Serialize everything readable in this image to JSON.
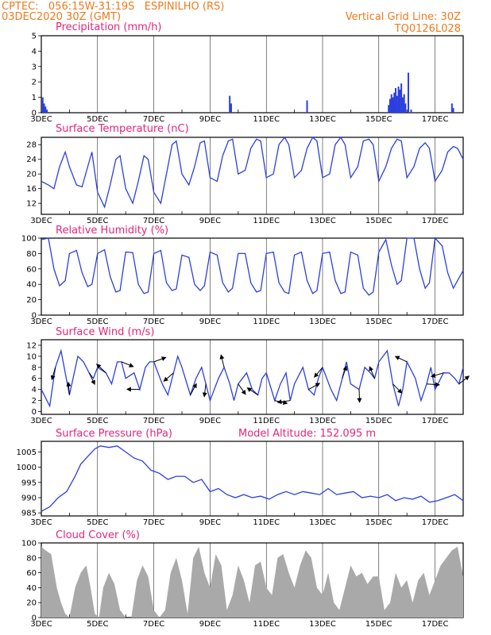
{
  "header": {
    "line1": "CPTEC:   056:15W-31:19S   ESPINILHO (RS)",
    "line2": "03DEC2020 30Z (GMT)",
    "right1": "Vertical Grid Line: 30Z",
    "right2": "TQ0126L028"
  },
  "x_ticks": [
    "3DEC",
    "5DEC",
    "7DEC",
    "9DEC",
    "11DEC",
    "13DEC",
    "15DEC",
    "17DEC"
  ],
  "colors": {
    "header": "#ee7a1c",
    "title": "#e4257a",
    "line": "#2b3fe0",
    "bar": "#2b3fe0",
    "cloud": "#a9a9a9"
  },
  "chart_data": [
    {
      "type": "bar",
      "title": "Precipitation (mm/h)",
      "ylim": [
        0,
        5
      ],
      "yticks": [
        0,
        1,
        2,
        3,
        4,
        5
      ],
      "x": [
        0.05,
        0.1,
        0.15,
        0.2,
        6.7,
        6.75,
        9.45,
        12.35,
        12.4,
        12.45,
        12.5,
        12.55,
        12.6,
        12.65,
        12.7,
        12.75,
        12.8,
        12.85,
        12.9,
        12.95,
        13.05,
        13.15,
        14.6,
        14.65
      ],
      "values": [
        1.0,
        0.6,
        0.4,
        0.2,
        1.1,
        0.6,
        0.8,
        0.5,
        0.9,
        1.2,
        1.0,
        1.3,
        1.6,
        1.1,
        1.7,
        1.5,
        1.9,
        1.0,
        1.2,
        0.6,
        2.6,
        0.2,
        0.6,
        0.3
      ]
    },
    {
      "type": "line",
      "title": "Surface Temperature (nC)",
      "ylim": [
        9,
        30
      ],
      "yticks": [
        12,
        16,
        20,
        24,
        28
      ],
      "x": [
        0,
        0.25,
        0.45,
        0.65,
        0.85,
        1.0,
        1.25,
        1.45,
        1.65,
        1.8,
        2.0,
        2.25,
        2.45,
        2.65,
        2.8,
        3.0,
        3.25,
        3.45,
        3.65,
        3.8,
        4.0,
        4.25,
        4.45,
        4.65,
        4.8,
        5.0,
        5.25,
        5.45,
        5.65,
        5.8,
        6.0,
        6.25,
        6.45,
        6.65,
        6.8,
        7.0,
        7.25,
        7.45,
        7.65,
        7.8,
        8.0,
        8.25,
        8.45,
        8.65,
        8.8,
        9.0,
        9.25,
        9.45,
        9.65,
        9.8,
        10.0,
        10.25,
        10.45,
        10.65,
        10.8,
        11.0,
        11.25,
        11.45,
        11.65,
        11.8,
        12.0,
        12.25,
        12.45,
        12.65,
        12.8,
        13.0,
        13.25,
        13.45,
        13.65,
        13.8,
        14.0,
        14.25,
        14.45,
        14.65,
        14.8,
        15.0
      ],
      "y": [
        18,
        17,
        16,
        22,
        26,
        22,
        17,
        16.5,
        22,
        26,
        15,
        11,
        17,
        24,
        25,
        16,
        12,
        18,
        25,
        24,
        15,
        12,
        20,
        28,
        29,
        20,
        17,
        22,
        28.5,
        29,
        19,
        18,
        25,
        29,
        29.5,
        20,
        21,
        27,
        29.5,
        29,
        19,
        20,
        28,
        30,
        28,
        19,
        21,
        27,
        30,
        29,
        19,
        20,
        28,
        30,
        28,
        19,
        22,
        29,
        29.5,
        28,
        18,
        22,
        27,
        29.5,
        29,
        19,
        22,
        27,
        28.5,
        27,
        18,
        21,
        26,
        27.5,
        27,
        24
      ]
    },
    {
      "type": "line",
      "title": "Relative Humidity (%)",
      "ylim": [
        0,
        100
      ],
      "yticks": [
        0,
        20,
        40,
        60,
        80,
        100
      ],
      "x": [
        0,
        0.25,
        0.45,
        0.65,
        0.85,
        1.0,
        1.25,
        1.45,
        1.65,
        1.8,
        2.0,
        2.25,
        2.45,
        2.65,
        2.8,
        3.0,
        3.25,
        3.45,
        3.65,
        3.8,
        4.0,
        4.25,
        4.45,
        4.65,
        4.8,
        5.0,
        5.25,
        5.45,
        5.65,
        5.8,
        6.0,
        6.25,
        6.45,
        6.65,
        6.8,
        7.0,
        7.25,
        7.45,
        7.65,
        7.8,
        8.0,
        8.25,
        8.45,
        8.65,
        8.8,
        9.0,
        9.25,
        9.45,
        9.65,
        9.8,
        10.0,
        10.25,
        10.45,
        10.65,
        10.8,
        11.0,
        11.25,
        11.45,
        11.65,
        11.8,
        12.0,
        12.25,
        12.45,
        12.65,
        12.8,
        13.0,
        13.25,
        13.45,
        13.65,
        13.8,
        14.0,
        14.25,
        14.45,
        14.65,
        14.8,
        15.0
      ],
      "y": [
        98,
        100,
        60,
        38,
        45,
        80,
        84,
        55,
        37,
        40,
        80,
        85,
        50,
        30,
        32,
        82,
        81,
        40,
        28,
        30,
        80,
        84,
        42,
        32,
        34,
        78,
        75,
        40,
        32,
        38,
        82,
        78,
        42,
        30,
        35,
        80,
        80,
        42,
        30,
        32,
        80,
        82,
        42,
        30,
        28,
        78,
        82,
        45,
        28,
        32,
        80,
        82,
        45,
        28,
        30,
        82,
        78,
        35,
        26,
        30,
        82,
        98,
        65,
        40,
        45,
        100,
        100,
        60,
        35,
        42,
        100,
        90,
        55,
        35,
        45,
        58
      ]
    },
    {
      "type": "line",
      "title": "Surface Wind (m/s)",
      "ylim": [
        -0.5,
        13
      ],
      "yticks": [
        0,
        2,
        4,
        6,
        8,
        10,
        12
      ],
      "x": [
        0,
        0.3,
        0.5,
        0.7,
        0.85,
        1.0,
        1.3,
        1.5,
        1.7,
        1.85,
        2.0,
        2.3,
        2.5,
        2.7,
        2.85,
        3.0,
        3.3,
        3.5,
        3.7,
        3.85,
        4.0,
        4.3,
        4.5,
        4.7,
        4.85,
        5.0,
        5.3,
        5.5,
        5.7,
        5.85,
        6.0,
        6.3,
        6.5,
        6.7,
        6.85,
        7.0,
        7.3,
        7.5,
        7.7,
        7.85,
        8.0,
        8.3,
        8.5,
        8.7,
        8.85,
        9.0,
        9.3,
        9.5,
        9.7,
        9.85,
        10.0,
        10.3,
        10.5,
        10.7,
        10.85,
        11.0,
        11.3,
        11.5,
        11.7,
        11.85,
        12.0,
        12.3,
        12.5,
        12.7,
        12.85,
        13.0,
        13.3,
        13.5,
        13.7,
        13.85,
        14.0,
        14.3,
        14.5,
        14.7,
        14.85,
        15.0
      ],
      "y": [
        4,
        1,
        8,
        11,
        7,
        3,
        10,
        9,
        7,
        6,
        8,
        7,
        5,
        9,
        9,
        6,
        7,
        4,
        8,
        9,
        9,
        5,
        3,
        7,
        10,
        8,
        3,
        6,
        8,
        5,
        2,
        6,
        8,
        5,
        2,
        5,
        7,
        4,
        3,
        6,
        7,
        2,
        5,
        7,
        2,
        5,
        8,
        4,
        3,
        6,
        8,
        4,
        2,
        6,
        9,
        5,
        4,
        8,
        7,
        6,
        9,
        11,
        5,
        1,
        4,
        9,
        6,
        2,
        5,
        8,
        4,
        7,
        7,
        6,
        5,
        8
      ]
    },
    {
      "type": "line",
      "title": "Surface Pressure (hPa)",
      "annotation": "Model Altitude: 152.095 m",
      "ylim": [
        984,
        1008.5
      ],
      "yticks": [
        985,
        990,
        995,
        1000,
        1005
      ],
      "x": [
        0,
        0.3,
        0.6,
        0.9,
        1.2,
        1.4,
        1.6,
        1.9,
        2.1,
        2.4,
        2.7,
        3.0,
        3.3,
        3.6,
        3.9,
        4.2,
        4.5,
        4.8,
        5.1,
        5.4,
        5.7,
        6.0,
        6.3,
        6.6,
        6.9,
        7.2,
        7.5,
        7.8,
        8.1,
        8.4,
        8.7,
        9.0,
        9.3,
        9.6,
        9.9,
        10.2,
        10.5,
        10.8,
        11.1,
        11.4,
        11.7,
        12.0,
        12.3,
        12.6,
        12.9,
        13.2,
        13.5,
        13.8,
        14.1,
        14.4,
        14.7,
        15.0
      ],
      "y": [
        985.5,
        987,
        990,
        992,
        997,
        1001,
        1003,
        1006,
        1007,
        1006.5,
        1007,
        1005,
        1003,
        1002,
        999,
        998,
        996,
        997,
        997,
        995,
        996,
        992,
        993,
        991,
        990,
        991,
        990,
        990.5,
        989.5,
        991,
        992,
        991,
        992,
        991.5,
        991,
        993,
        991,
        991.5,
        992,
        990,
        990.5,
        990,
        991,
        989,
        990,
        989.5,
        990.5,
        988.5,
        989,
        990,
        991,
        989
      ]
    },
    {
      "type": "area",
      "title": "Cloud Cover (%)",
      "ylim": [
        0,
        100
      ],
      "yticks": [
        0,
        20,
        40,
        60,
        80,
        100
      ],
      "x": [
        0,
        0.15,
        0.35,
        0.55,
        0.7,
        0.85,
        1.0,
        1.2,
        1.4,
        1.6,
        1.75,
        1.9,
        2.05,
        2.2,
        2.4,
        2.6,
        2.8,
        3.0,
        3.2,
        3.4,
        3.6,
        3.8,
        4.0,
        4.2,
        4.4,
        4.6,
        4.8,
        5.0,
        5.2,
        5.4,
        5.6,
        5.8,
        6.0,
        6.2,
        6.4,
        6.6,
        6.8,
        7.0,
        7.2,
        7.4,
        7.6,
        7.8,
        8.0,
        8.2,
        8.4,
        8.6,
        8.8,
        9.0,
        9.2,
        9.4,
        9.6,
        9.8,
        10.0,
        10.2,
        10.4,
        10.6,
        10.8,
        11.0,
        11.2,
        11.4,
        11.6,
        11.8,
        12.0,
        12.2,
        12.4,
        12.6,
        12.8,
        13.0,
        13.2,
        13.4,
        13.6,
        13.8,
        14.0,
        14.2,
        14.4,
        14.6,
        14.8,
        15.0
      ],
      "y": [
        95,
        90,
        85,
        40,
        20,
        5,
        0,
        40,
        60,
        70,
        40,
        5,
        0,
        40,
        60,
        45,
        10,
        0,
        0,
        50,
        70,
        55,
        10,
        0,
        10,
        60,
        80,
        50,
        5,
        80,
        95,
        60,
        40,
        85,
        70,
        10,
        30,
        70,
        50,
        20,
        70,
        75,
        40,
        30,
        80,
        85,
        60,
        40,
        70,
        90,
        80,
        40,
        30,
        60,
        20,
        10,
        40,
        70,
        55,
        60,
        45,
        55,
        55,
        10,
        20,
        60,
        40,
        50,
        20,
        50,
        60,
        30,
        50,
        70,
        80,
        90,
        95,
        55
      ]
    }
  ]
}
